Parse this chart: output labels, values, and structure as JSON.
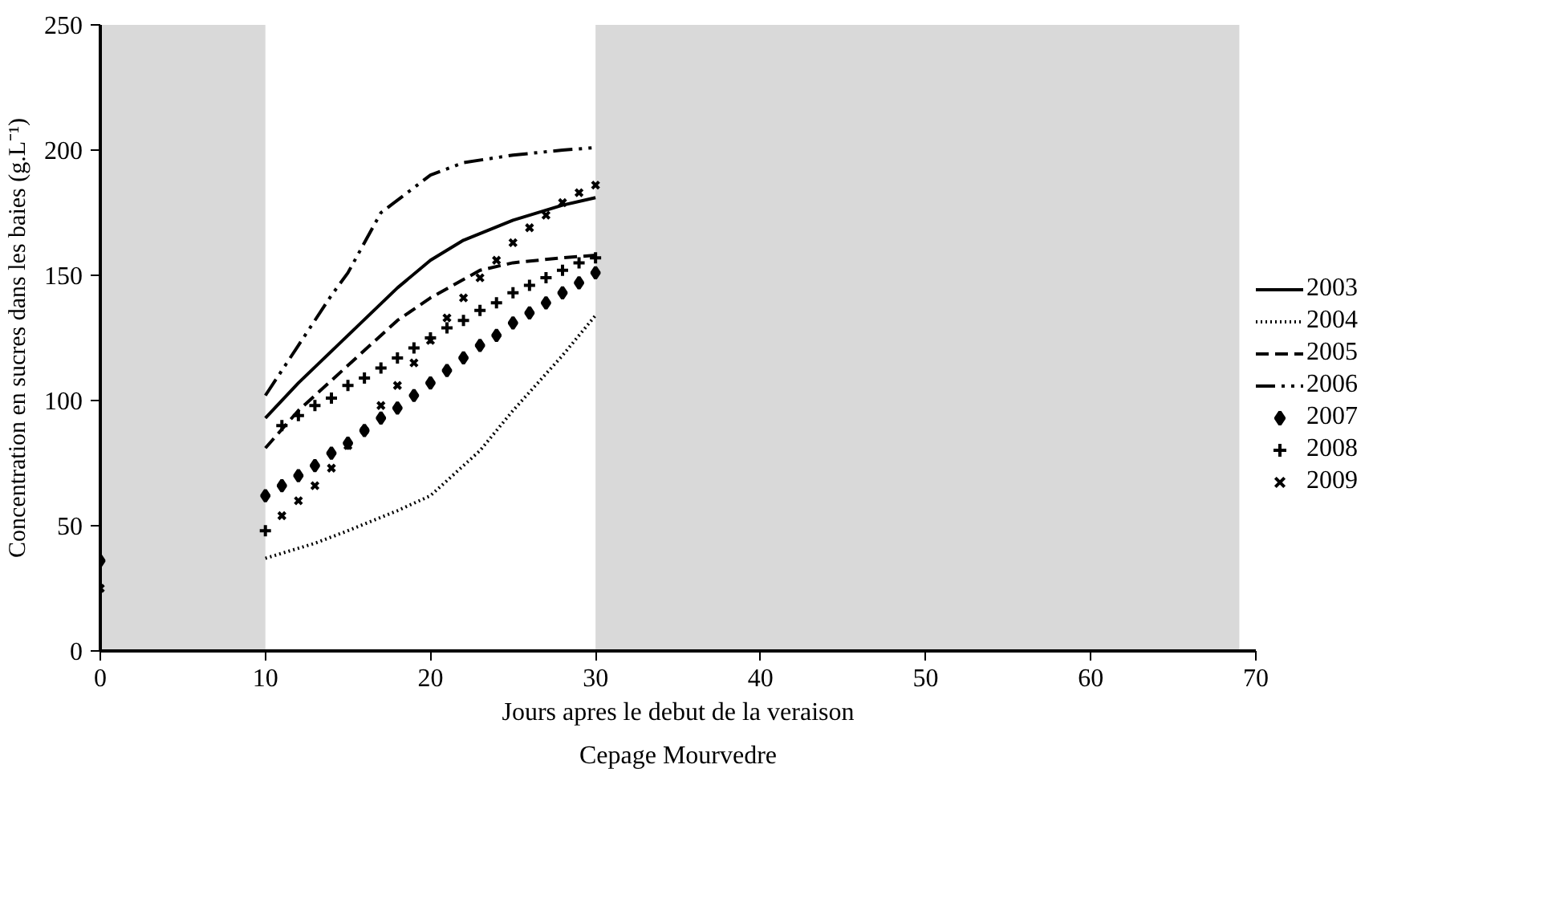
{
  "chart_data": {
    "type": "line",
    "xlabel": "Jours apres le debut de la veraison",
    "ylabel": "Concentration en sucres dans les baies (g.L⁻¹)",
    "annotations": [
      "Cepage Mourvedre"
    ],
    "xlim": [
      0,
      70
    ],
    "xticks": [
      0,
      10,
      20,
      30,
      40,
      50,
      60,
      70
    ],
    "ylim": [
      0,
      250
    ],
    "yticks": [
      0,
      50,
      100,
      150,
      200,
      250
    ],
    "grid": false,
    "legend": "right",
    "bands": [
      {
        "axis": "x",
        "from": 0,
        "to": 10,
        "color": "#d9d9d9"
      },
      {
        "axis": "x",
        "from": 30,
        "to": 69,
        "color": "#d9d9d9"
      }
    ],
    "series": [
      {
        "name": "2003",
        "line_style": "solid",
        "color": "#000000",
        "x": [
          10,
          12,
          15,
          18,
          20,
          22,
          25,
          28,
          30
        ],
        "values": [
          93,
          107,
          126,
          145,
          156,
          164,
          172,
          178,
          181
        ]
      },
      {
        "name": "2004",
        "line_style": "dotted",
        "color": "#000000",
        "x": [
          10,
          13,
          15,
          18,
          20,
          23,
          25,
          28,
          30
        ],
        "values": [
          37,
          43,
          48,
          56,
          62,
          80,
          96,
          118,
          134
        ]
      },
      {
        "name": "2005",
        "line_style": "dashed",
        "color": "#000000",
        "x": [
          10,
          12,
          15,
          18,
          20,
          23,
          25,
          28,
          30
        ],
        "values": [
          81,
          96,
          114,
          132,
          141,
          152,
          155,
          157,
          158
        ]
      },
      {
        "name": "2006",
        "line_style": "dashdot",
        "color": "#000000",
        "x": [
          10,
          12,
          14,
          15,
          17,
          20,
          22,
          25,
          28,
          30
        ],
        "values": [
          102,
          122,
          142,
          151,
          175,
          190,
          195,
          198,
          200,
          201
        ]
      },
      {
        "name": "2007",
        "type": "scatter",
        "marker": "diamond",
        "color": "#000000",
        "x": [
          0,
          10,
          11,
          12,
          13,
          14,
          15,
          16,
          17,
          18,
          19,
          20,
          21,
          22,
          23,
          24,
          25,
          26,
          27,
          28,
          29,
          30
        ],
        "values": [
          36,
          62,
          66,
          70,
          74,
          79,
          83,
          88,
          93,
          97,
          102,
          107,
          112,
          117,
          122,
          126,
          131,
          135,
          139,
          143,
          147,
          151
        ]
      },
      {
        "name": "2008",
        "type": "scatter",
        "marker": "cross",
        "color": "#000000",
        "x": [
          10,
          11,
          12,
          13,
          14,
          15,
          16,
          17,
          18,
          19,
          20,
          21,
          22,
          23,
          24,
          25,
          26,
          27,
          28,
          29,
          30
        ],
        "values": [
          48,
          90,
          94,
          98,
          101,
          106,
          109,
          113,
          117,
          121,
          125,
          129,
          132,
          136,
          139,
          143,
          146,
          149,
          152,
          155,
          157
        ]
      },
      {
        "name": "2009",
        "type": "scatter",
        "marker": "x",
        "color": "#000000",
        "x": [
          0,
          11,
          12,
          13,
          14,
          15,
          16,
          17,
          18,
          19,
          20,
          21,
          22,
          23,
          24,
          25,
          26,
          27,
          28,
          29,
          30
        ],
        "values": [
          25,
          54,
          60,
          66,
          73,
          82,
          88,
          98,
          106,
          115,
          124,
          133,
          141,
          149,
          156,
          163,
          169,
          174,
          179,
          183,
          186
        ]
      }
    ]
  }
}
